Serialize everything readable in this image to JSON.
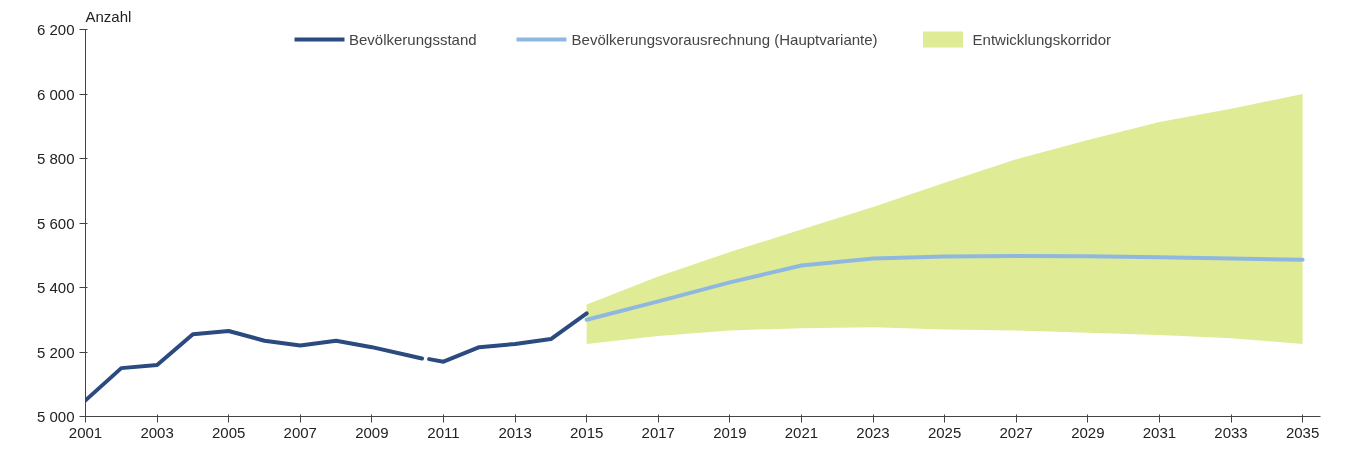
{
  "chart_data": {
    "type": "line",
    "ylabel": "Anzahl",
    "xlim": [
      2001,
      2035.5
    ],
    "xticks": [
      2001,
      2003,
      2005,
      2007,
      2009,
      2011,
      2013,
      2015,
      2017,
      2019,
      2021,
      2023,
      2025,
      2027,
      2029,
      2031,
      2033,
      2035
    ],
    "ylim": [
      5000,
      6200
    ],
    "yticks": [
      {
        "value": 5000,
        "label": "5 000"
      },
      {
        "value": 5200,
        "label": "5 200"
      },
      {
        "value": 5400,
        "label": "5 400"
      },
      {
        "value": 5600,
        "label": "5 600"
      },
      {
        "value": 5800,
        "label": "5 800"
      },
      {
        "value": 6000,
        "label": "6 000"
      },
      {
        "value": 6200,
        "label": "6 200"
      }
    ],
    "legend": "top",
    "marker": "none",
    "line_style": "solid",
    "series": [
      {
        "name": "Bevölkerungsstand",
        "color": "#2b4a7f",
        "x": [
          2001,
          2002,
          2003,
          2004,
          2005,
          2006,
          2007,
          2008,
          2009,
          2010,
          2010.4,
          2010.5,
          2010.6,
          2011,
          2012,
          2013,
          2014,
          2015
        ],
        "values": [
          5050,
          5150,
          5160,
          5255,
          5265,
          5235,
          5220,
          5235,
          5215,
          5190,
          5180,
          null,
          5178,
          5170,
          5215,
          5225,
          5240,
          5320
        ]
      },
      {
        "name": "Bevölkerungsvorausrechnung (Hauptvariante)",
        "color": "#8fb8e0",
        "x": [
          2015,
          2017,
          2019,
          2021,
          2023,
          2025,
          2027,
          2029,
          2031,
          2033,
          2035
        ],
        "values": [
          5300,
          5357,
          5416,
          5468,
          5490,
          5496,
          5498,
          5497,
          5494,
          5490,
          5486
        ]
      },
      {
        "name": "Entwicklungskorridor",
        "type": "area",
        "color": "#e0ec95",
        "x": [
          2015,
          2017,
          2019,
          2021,
          2023,
          2025,
          2027,
          2029,
          2031,
          2033,
          2035
        ],
        "values": [
          null,
          null,
          null,
          null,
          null,
          null,
          null,
          null,
          null,
          null,
          null
        ],
        "lower": [
          5225,
          5250,
          5267,
          5274,
          5277,
          5270,
          5267,
          5260,
          5253,
          5243,
          5225
        ],
        "upper": [
          5347,
          5434,
          5510,
          5580,
          5650,
          5725,
          5798,
          5857,
          5913,
          5954,
          6000
        ]
      }
    ]
  }
}
